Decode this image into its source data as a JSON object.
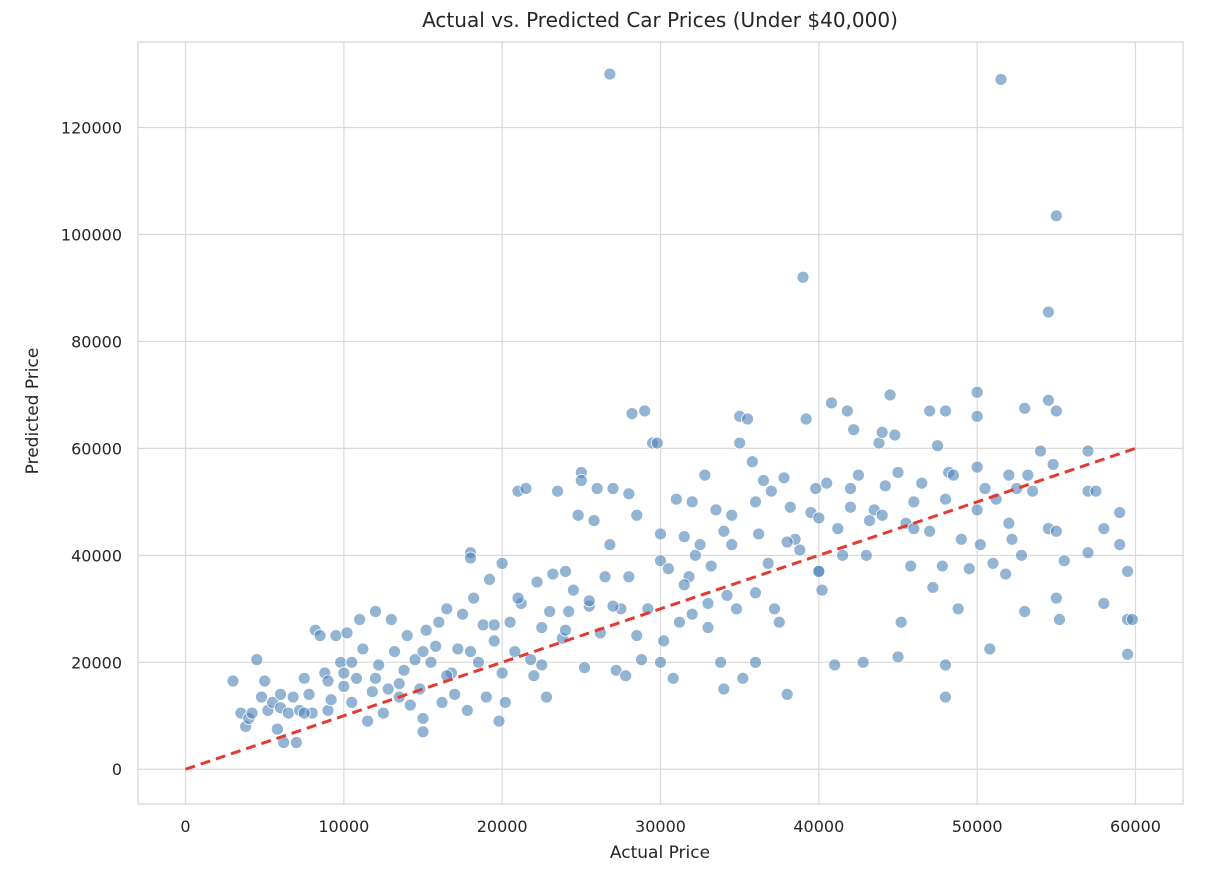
{
  "chart_data": {
    "type": "scatter",
    "title": "Actual vs. Predicted Car Prices (Under $40,000)",
    "xlabel": "Actual Price",
    "ylabel": "Predicted Price",
    "xlim": [
      -3000,
      63000
    ],
    "ylim": [
      -6500,
      136000
    ],
    "xticks": [
      0,
      10000,
      20000,
      30000,
      40000,
      50000,
      60000
    ],
    "yticks": [
      0,
      20000,
      40000,
      60000,
      80000,
      100000,
      120000
    ],
    "grid": true,
    "colors": {
      "points": "#4c82b8",
      "points_edge": "#ffffff",
      "reference_line": "#e33b32",
      "grid": "#d9d9d9",
      "frame": "#cccccc"
    },
    "reference_line": {
      "from": [
        0,
        0
      ],
      "to": [
        60000,
        60000
      ],
      "style": "dashed"
    },
    "points": [
      [
        3000,
        16500
      ],
      [
        3500,
        10500
      ],
      [
        3800,
        8000
      ],
      [
        4000,
        9500
      ],
      [
        4200,
        10500
      ],
      [
        4500,
        20500
      ],
      [
        4800,
        13500
      ],
      [
        5000,
        16500
      ],
      [
        5200,
        11000
      ],
      [
        5500,
        12500
      ],
      [
        5800,
        7500
      ],
      [
        6000,
        11500
      ],
      [
        6200,
        5000
      ],
      [
        6500,
        10500
      ],
      [
        6800,
        13500
      ],
      [
        7000,
        5000
      ],
      [
        7200,
        11000
      ],
      [
        7500,
        17000
      ],
      [
        7800,
        14000
      ],
      [
        8000,
        10500
      ],
      [
        8200,
        26000
      ],
      [
        8500,
        25000
      ],
      [
        8800,
        18000
      ],
      [
        9000,
        11000
      ],
      [
        9200,
        13000
      ],
      [
        9500,
        25000
      ],
      [
        9800,
        20000
      ],
      [
        10000,
        18000
      ],
      [
        10000,
        15500
      ],
      [
        10200,
        25500
      ],
      [
        10500,
        12500
      ],
      [
        10800,
        17000
      ],
      [
        11000,
        28000
      ],
      [
        11200,
        22500
      ],
      [
        11500,
        9000
      ],
      [
        11800,
        14500
      ],
      [
        12000,
        29500
      ],
      [
        12200,
        19500
      ],
      [
        12500,
        10500
      ],
      [
        12800,
        15000
      ],
      [
        13000,
        28000
      ],
      [
        13200,
        22000
      ],
      [
        13500,
        16000
      ],
      [
        13800,
        18500
      ],
      [
        14000,
        25000
      ],
      [
        14200,
        12000
      ],
      [
        14500,
        20500
      ],
      [
        14800,
        15000
      ],
      [
        15000,
        9500
      ],
      [
        15000,
        7000
      ],
      [
        15200,
        26000
      ],
      [
        15500,
        20000
      ],
      [
        15800,
        23000
      ],
      [
        16000,
        27500
      ],
      [
        16200,
        12500
      ],
      [
        16500,
        30000
      ],
      [
        16800,
        18000
      ],
      [
        17000,
        14000
      ],
      [
        17200,
        22500
      ],
      [
        17500,
        29000
      ],
      [
        17800,
        11000
      ],
      [
        18000,
        40500
      ],
      [
        18000,
        39500
      ],
      [
        18200,
        32000
      ],
      [
        18500,
        20000
      ],
      [
        18800,
        27000
      ],
      [
        19000,
        13500
      ],
      [
        19200,
        35500
      ],
      [
        19500,
        24000
      ],
      [
        19800,
        9000
      ],
      [
        20000,
        18000
      ],
      [
        20000,
        38500
      ],
      [
        20200,
        12500
      ],
      [
        20500,
        27500
      ],
      [
        20800,
        22000
      ],
      [
        21000,
        52000
      ],
      [
        21200,
        31000
      ],
      [
        21500,
        52500
      ],
      [
        21800,
        20500
      ],
      [
        22000,
        17500
      ],
      [
        22200,
        35000
      ],
      [
        22500,
        26500
      ],
      [
        22800,
        13500
      ],
      [
        23000,
        29500
      ],
      [
        23200,
        36500
      ],
      [
        23500,
        52000
      ],
      [
        23800,
        24500
      ],
      [
        24000,
        37000
      ],
      [
        24200,
        29500
      ],
      [
        24500,
        33500
      ],
      [
        24800,
        47500
      ],
      [
        25000,
        55500
      ],
      [
        25000,
        54000
      ],
      [
        25200,
        19000
      ],
      [
        25500,
        30500
      ],
      [
        25800,
        46500
      ],
      [
        26000,
        52500
      ],
      [
        26200,
        25500
      ],
      [
        26500,
        36000
      ],
      [
        26800,
        42000
      ],
      [
        27000,
        52500
      ],
      [
        27200,
        18500
      ],
      [
        27500,
        30000
      ],
      [
        27800,
        17500
      ],
      [
        28000,
        51500
      ],
      [
        28200,
        66500
      ],
      [
        28500,
        47500
      ],
      [
        28800,
        20500
      ],
      [
        29000,
        67000
      ],
      [
        29200,
        30000
      ],
      [
        29500,
        61000
      ],
      [
        29800,
        61000
      ],
      [
        30000,
        39000
      ],
      [
        30200,
        24000
      ],
      [
        30500,
        37500
      ],
      [
        30800,
        17000
      ],
      [
        31000,
        50500
      ],
      [
        31200,
        27500
      ],
      [
        31500,
        43500
      ],
      [
        31800,
        36000
      ],
      [
        32000,
        50000
      ],
      [
        32200,
        40000
      ],
      [
        32500,
        42000
      ],
      [
        32800,
        55000
      ],
      [
        33000,
        26500
      ],
      [
        33200,
        38000
      ],
      [
        33500,
        48500
      ],
      [
        33800,
        20000
      ],
      [
        34000,
        15000
      ],
      [
        34200,
        32500
      ],
      [
        34500,
        47500
      ],
      [
        34800,
        30000
      ],
      [
        35000,
        66000
      ],
      [
        35000,
        61000
      ],
      [
        35200,
        17000
      ],
      [
        35500,
        65500
      ],
      [
        35800,
        57500
      ],
      [
        36000,
        50000
      ],
      [
        36000,
        20000
      ],
      [
        36200,
        44000
      ],
      [
        36500,
        54000
      ],
      [
        36800,
        38500
      ],
      [
        37000,
        52000
      ],
      [
        37200,
        30000
      ],
      [
        37500,
        27500
      ],
      [
        37800,
        54500
      ],
      [
        38000,
        14000
      ],
      [
        38200,
        49000
      ],
      [
        38500,
        43000
      ],
      [
        38800,
        41000
      ],
      [
        39000,
        92000
      ],
      [
        39200,
        65500
      ],
      [
        39500,
        48000
      ],
      [
        39800,
        52500
      ],
      [
        40000,
        47000
      ],
      [
        40000,
        37000
      ],
      [
        40200,
        33500
      ],
      [
        40500,
        53500
      ],
      [
        40800,
        68500
      ],
      [
        41000,
        19500
      ],
      [
        41200,
        45000
      ],
      [
        41500,
        40000
      ],
      [
        41800,
        67000
      ],
      [
        42000,
        52500
      ],
      [
        42200,
        63500
      ],
      [
        42500,
        55000
      ],
      [
        42800,
        20000
      ],
      [
        43000,
        40000
      ],
      [
        43200,
        46500
      ],
      [
        43500,
        48500
      ],
      [
        43800,
        61000
      ],
      [
        44000,
        63000
      ],
      [
        44200,
        53000
      ],
      [
        44500,
        70000
      ],
      [
        44800,
        62500
      ],
      [
        45000,
        55500
      ],
      [
        45000,
        21000
      ],
      [
        45200,
        27500
      ],
      [
        45500,
        46000
      ],
      [
        45800,
        38000
      ],
      [
        46000,
        50000
      ],
      [
        46500,
        53500
      ],
      [
        47000,
        67000
      ],
      [
        47000,
        44500
      ],
      [
        47200,
        34000
      ],
      [
        47500,
        60500
      ],
      [
        47800,
        38000
      ],
      [
        48000,
        67000
      ],
      [
        48000,
        13500
      ],
      [
        48000,
        19500
      ],
      [
        48200,
        55500
      ],
      [
        48500,
        55000
      ],
      [
        48800,
        30000
      ],
      [
        49000,
        43000
      ],
      [
        49500,
        37500
      ],
      [
        50000,
        70500
      ],
      [
        50000,
        66000
      ],
      [
        50000,
        56500
      ],
      [
        50000,
        48500
      ],
      [
        50200,
        42000
      ],
      [
        50500,
        52500
      ],
      [
        50800,
        22500
      ],
      [
        51000,
        38500
      ],
      [
        51200,
        50500
      ],
      [
        51500,
        129000
      ],
      [
        51800,
        36500
      ],
      [
        52000,
        55000
      ],
      [
        52000,
        46000
      ],
      [
        52200,
        43000
      ],
      [
        52500,
        52500
      ],
      [
        52800,
        40000
      ],
      [
        53000,
        67500
      ],
      [
        53000,
        29500
      ],
      [
        53200,
        55000
      ],
      [
        53500,
        52000
      ],
      [
        54000,
        59500
      ],
      [
        54500,
        69000
      ],
      [
        54500,
        45000
      ],
      [
        54800,
        57000
      ],
      [
        55000,
        103500
      ],
      [
        54500,
        85500
      ],
      [
        55000,
        67000
      ],
      [
        55000,
        44500
      ],
      [
        55000,
        32000
      ],
      [
        55200,
        28000
      ],
      [
        55500,
        39000
      ],
      [
        57000,
        59500
      ],
      [
        57000,
        52000
      ],
      [
        57000,
        40500
      ],
      [
        57500,
        52000
      ],
      [
        58000,
        31000
      ],
      [
        58000,
        45000
      ],
      [
        59000,
        48000
      ],
      [
        59000,
        42000
      ],
      [
        59500,
        37000
      ],
      [
        59500,
        21500
      ],
      [
        59500,
        28000
      ],
      [
        59800,
        28000
      ],
      [
        26800,
        130000
      ],
      [
        28000,
        36000
      ],
      [
        30000,
        20000
      ],
      [
        32000,
        29000
      ],
      [
        34000,
        44500
      ],
      [
        36000,
        33000
      ],
      [
        38000,
        42500
      ],
      [
        40000,
        37000
      ],
      [
        42000,
        49000
      ],
      [
        44000,
        47500
      ],
      [
        46000,
        45000
      ],
      [
        48000,
        50500
      ],
      [
        6000,
        14000
      ],
      [
        7500,
        10500
      ],
      [
        9000,
        16500
      ],
      [
        10500,
        20000
      ],
      [
        12000,
        17000
      ],
      [
        13500,
        13500
      ],
      [
        15000,
        22000
      ],
      [
        16500,
        17500
      ],
      [
        18000,
        22000
      ],
      [
        19500,
        27000
      ],
      [
        21000,
        32000
      ],
      [
        22500,
        19500
      ],
      [
        24000,
        26000
      ],
      [
        25500,
        31500
      ],
      [
        27000,
        30500
      ],
      [
        28500,
        25000
      ],
      [
        30000,
        44000
      ],
      [
        31500,
        34500
      ],
      [
        33000,
        31000
      ],
      [
        34500,
        42000
      ]
    ]
  }
}
